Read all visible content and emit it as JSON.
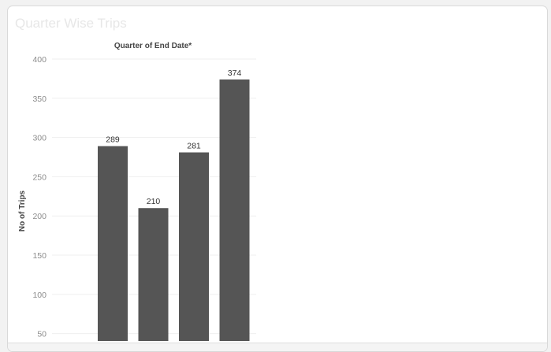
{
  "panel": {
    "title": "Quarter Wise Trips"
  },
  "chart_data": {
    "type": "bar",
    "title": "Quarter of End Date*",
    "xlabel": "",
    "ylabel": "No of Trips",
    "categories": [
      "",
      "",
      "",
      ""
    ],
    "values": [
      289,
      210,
      281,
      374
    ],
    "ylim": [
      30,
      400
    ],
    "yticks": [
      50,
      100,
      150,
      200,
      250,
      300,
      350,
      400
    ],
    "grid": true,
    "legend": "none",
    "colors": {
      "bar": "#555555",
      "grid": "#efefef",
      "tick_text": "#8c8c8c",
      "axis_text": "#444444",
      "label_text": "#333333"
    }
  }
}
